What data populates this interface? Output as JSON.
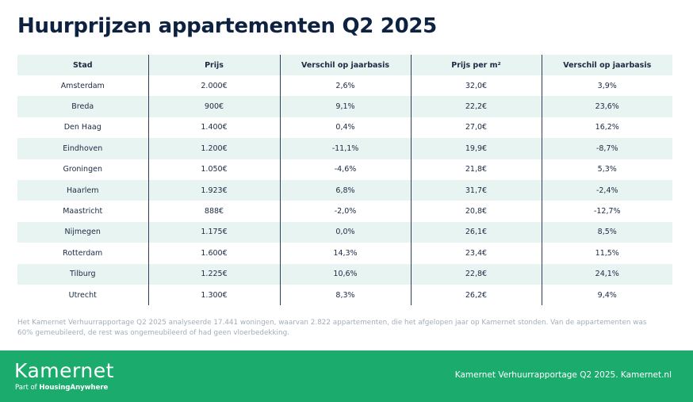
{
  "title": "Huurprijzen appartementen Q2 2025",
  "table": {
    "headers": [
      "Stad",
      "Prijs",
      "Verschil op jaarbasis",
      "Prijs per m²",
      "Verschil op jaarbasis"
    ],
    "rows": [
      [
        "Amsterdam",
        "2.000€",
        "2,6%",
        "32,0€",
        "3,9%"
      ],
      [
        "Breda",
        "900€",
        "9,1%",
        "22,2€",
        "23,6%"
      ],
      [
        "Den Haag",
        "1.400€",
        "0,4%",
        "27,0€",
        "16,2%"
      ],
      [
        "Eindhoven",
        "1.200€",
        "-11,1%",
        "19,9€",
        "-8,7%"
      ],
      [
        "Groningen",
        "1.050€",
        "-4,6%",
        "21,8€",
        "5,3%"
      ],
      [
        "Haarlem",
        "1.923€",
        "6,8%",
        "31,7€",
        "-2,4%"
      ],
      [
        "Maastricht",
        "888€",
        "-2,0%",
        "20,8€",
        "-12,7%"
      ],
      [
        "Nijmegen",
        "1.175€",
        "0,0%",
        "26,1€",
        "8,5%"
      ],
      [
        "Rotterdam",
        "1.600€",
        "14,3%",
        "23,4€",
        "11,5%"
      ],
      [
        "Tilburg",
        "1.225€",
        "10,6%",
        "22,8€",
        "24,1%"
      ],
      [
        "Utrecht",
        "1.300€",
        "8,3%",
        "26,2€",
        "9,4%"
      ]
    ]
  },
  "note": "Het Kamernet Verhuurrapportage Q2 2025 analyseerde 17.441 woningen, waarvan 2.822 appartementen, die het afgelopen jaar op Kamernet stonden. Van de appartementen was 60% gemeubileerd, de rest was ongemeubileerd of had geen vloerbedekking.",
  "footer": {
    "logo_text": "Kamernet",
    "logo_sub_prefix": "Part of ",
    "logo_sub_brand": "HousingAnywhere",
    "right_text": "Kamernet Verhuurrapportage Q2 2025. Kamernet.nl"
  },
  "colors": {
    "footer_green": "#1bab6d",
    "row_shade": "#e8f4f2",
    "title_navy": "#0d2240"
  }
}
